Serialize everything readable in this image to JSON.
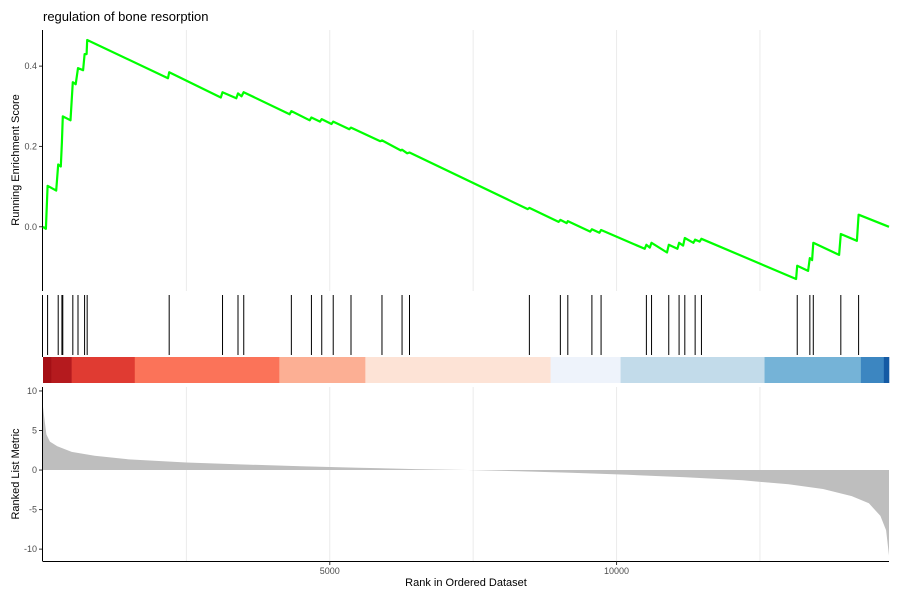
{
  "chart_data": {
    "type": "line",
    "title": "regulation of bone resorption",
    "xlabel": "Rank in Ordered Dataset",
    "x_ticks": [
      5000,
      10000
    ],
    "xlim": [
      0,
      14750
    ],
    "grid": true,
    "panels": {
      "enrichment": {
        "ylabel": "Running Enrichment Score",
        "y_ticks": [
          0.0,
          0.2,
          0.4
        ],
        "ylim": [
          -0.16,
          0.49
        ],
        "line_color": "#00ff00",
        "points": [
          [
            0,
            0.0
          ],
          [
            50,
            -0.005
          ],
          [
            80,
            0.102
          ],
          [
            230,
            0.09
          ],
          [
            265,
            0.155
          ],
          [
            310,
            0.15
          ],
          [
            330,
            0.21
          ],
          [
            345,
            0.275
          ],
          [
            480,
            0.265
          ],
          [
            520,
            0.36
          ],
          [
            570,
            0.355
          ],
          [
            610,
            0.395
          ],
          [
            700,
            0.39
          ],
          [
            725,
            0.43
          ],
          [
            760,
            0.43
          ],
          [
            770,
            0.465
          ],
          [
            2180,
            0.37
          ],
          [
            2200,
            0.385
          ],
          [
            3100,
            0.322
          ],
          [
            3130,
            0.335
          ],
          [
            3370,
            0.32
          ],
          [
            3400,
            0.332
          ],
          [
            3460,
            0.325
          ],
          [
            3500,
            0.335
          ],
          [
            4300,
            0.28
          ],
          [
            4330,
            0.288
          ],
          [
            4650,
            0.265
          ],
          [
            4680,
            0.272
          ],
          [
            4830,
            0.262
          ],
          [
            4860,
            0.268
          ],
          [
            5030,
            0.256
          ],
          [
            5060,
            0.262
          ],
          [
            5340,
            0.243
          ],
          [
            5370,
            0.247
          ],
          [
            5880,
            0.213
          ],
          [
            5910,
            0.215
          ],
          [
            6240,
            0.19
          ],
          [
            6260,
            0.192
          ],
          [
            6350,
            0.183
          ],
          [
            6390,
            0.185
          ],
          [
            8450,
            0.044
          ],
          [
            8480,
            0.047
          ],
          [
            8990,
            0.012
          ],
          [
            9020,
            0.017
          ],
          [
            9130,
            0.009
          ],
          [
            9150,
            0.014
          ],
          [
            9540,
            -0.012
          ],
          [
            9570,
            -0.006
          ],
          [
            9700,
            -0.015
          ],
          [
            9730,
            -0.008
          ],
          [
            10490,
            -0.055
          ],
          [
            10520,
            -0.045
          ],
          [
            10580,
            -0.052
          ],
          [
            10610,
            -0.04
          ],
          [
            10880,
            -0.064
          ],
          [
            10910,
            -0.045
          ],
          [
            11060,
            -0.055
          ],
          [
            11090,
            -0.04
          ],
          [
            11160,
            -0.047
          ],
          [
            11190,
            -0.028
          ],
          [
            11340,
            -0.04
          ],
          [
            11370,
            -0.032
          ],
          [
            11450,
            -0.037
          ],
          [
            11480,
            -0.03
          ],
          [
            13130,
            -0.13
          ],
          [
            13150,
            -0.097
          ],
          [
            13340,
            -0.11
          ],
          [
            13370,
            -0.078
          ],
          [
            13410,
            -0.083
          ],
          [
            13430,
            -0.04
          ],
          [
            13880,
            -0.07
          ],
          [
            13910,
            -0.018
          ],
          [
            14190,
            -0.035
          ],
          [
            14220,
            0.03
          ],
          [
            14750,
            0.0
          ]
        ]
      },
      "hits": {
        "positions": [
          80,
          265,
          330,
          345,
          520,
          610,
          725,
          770,
          2200,
          3130,
          3400,
          3500,
          4330,
          4680,
          4860,
          5060,
          5370,
          5910,
          6260,
          6390,
          8480,
          9020,
          9150,
          9570,
          9730,
          10520,
          10610,
          10910,
          11090,
          11190,
          11370,
          11480,
          13150,
          13370,
          13430,
          13910,
          14220
        ]
      },
      "heat_bar": {
        "segments": [
          {
            "from": 0,
            "to": 150,
            "color": "#a50f15"
          },
          {
            "from": 150,
            "to": 500,
            "color": "#b51a1e"
          },
          {
            "from": 500,
            "to": 1600,
            "color": "#e03b32"
          },
          {
            "from": 1600,
            "to": 4120,
            "color": "#fb7359"
          },
          {
            "from": 4120,
            "to": 5620,
            "color": "#fcaf94"
          },
          {
            "from": 5620,
            "to": 8850,
            "color": "#fde3d6"
          },
          {
            "from": 8850,
            "to": 10070,
            "color": "#eef3fb"
          },
          {
            "from": 10070,
            "to": 12580,
            "color": "#c2dbea"
          },
          {
            "from": 12580,
            "to": 14260,
            "color": "#75b3d7"
          },
          {
            "from": 14260,
            "to": 14660,
            "color": "#3c86c1"
          },
          {
            "from": 14660,
            "to": 14750,
            "color": "#145aa4"
          }
        ]
      },
      "ranked_metric": {
        "ylabel": "Ranked List Metric",
        "y_ticks": [
          10,
          5,
          0,
          -5,
          -10
        ],
        "ylim": [
          -11.5,
          10.5
        ],
        "fill_color": "#bebebe",
        "curve": [
          [
            0,
            8.0
          ],
          [
            20,
            6.8
          ],
          [
            60,
            4.5
          ],
          [
            120,
            3.6
          ],
          [
            250,
            3.0
          ],
          [
            500,
            2.3
          ],
          [
            900,
            1.8
          ],
          [
            1500,
            1.35
          ],
          [
            2500,
            0.95
          ],
          [
            3500,
            0.7
          ],
          [
            4500,
            0.48
          ],
          [
            5500,
            0.3
          ],
          [
            6500,
            0.12
          ],
          [
            7400,
            0.0
          ],
          [
            8300,
            -0.15
          ],
          [
            9200,
            -0.35
          ],
          [
            10200,
            -0.6
          ],
          [
            11200,
            -0.9
          ],
          [
            12200,
            -1.3
          ],
          [
            13000,
            -1.8
          ],
          [
            13600,
            -2.4
          ],
          [
            14100,
            -3.3
          ],
          [
            14400,
            -4.2
          ],
          [
            14600,
            -5.8
          ],
          [
            14700,
            -7.6
          ],
          [
            14750,
            -10.8
          ]
        ]
      }
    }
  }
}
